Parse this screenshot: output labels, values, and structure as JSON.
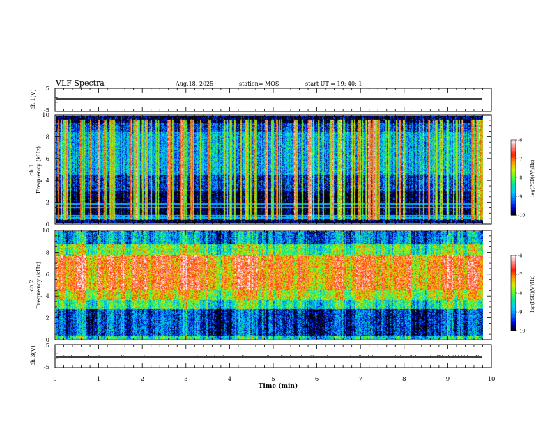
{
  "header": {
    "title": "VLF Spectra",
    "date": "Aug.18, 2025",
    "station": "station= MOS",
    "start_ut": "start  UT  =   19: 40: 1"
  },
  "colors": {
    "colormap": [
      "#000000",
      "#0000e0",
      "#0070ff",
      "#00c8ff",
      "#00e8a0",
      "#50ff30",
      "#d0f000",
      "#ffa000",
      "#ff2000",
      "#ff8888",
      "#ffffff"
    ]
  },
  "chart_data": [
    {
      "type": "line",
      "panel": "ch1-waveform",
      "ylabel": "ch.1(V)",
      "ylim": [
        -5,
        5
      ],
      "yticks": [
        "5",
        "-5"
      ],
      "x": [
        0,
        9.83
      ],
      "values": [
        -1,
        -1
      ],
      "note_visible": false
    },
    {
      "type": "heatmap",
      "panel": "ch1-spectrogram",
      "ylabel": "ch.1\nFrequency (kHz)",
      "ylabel_line1": "ch.1",
      "ylabel_line2": "Frequency (kHz)",
      "xlim": [
        0,
        10
      ],
      "ylim": [
        0,
        10
      ],
      "yticks": [
        "0",
        "2",
        "4",
        "6",
        "8",
        "10"
      ],
      "data_extent_min": 9.83,
      "background_log_psd_by_freq_khz": {
        "0-0.4": -10,
        "0.4-0.8": -9.2,
        "0.8-3": -10,
        "3-4.5": -9.5,
        "4.5-8.5": -8.9,
        "8.5-9.3": -9.4,
        "9.3-10": -10
      },
      "horizontal_lines_khz": [
        0.5,
        0.7,
        1.5,
        1.8
      ],
      "sferic_count_approx": 160,
      "colorbar": {
        "label": "log(PSD)(V²/Hz)",
        "ticks": [
          "-6",
          "-7",
          "-8",
          "-9",
          "-10"
        ],
        "range": [
          -10,
          -6
        ]
      }
    },
    {
      "type": "heatmap",
      "panel": "ch2-spectrogram",
      "ylabel_line1": "ch.2",
      "ylabel_line2": "Frequency (kHz)",
      "xlim": [
        0,
        10
      ],
      "ylim": [
        0,
        10
      ],
      "yticks": [
        "0",
        "2",
        "4",
        "6",
        "8",
        "10"
      ],
      "data_extent_min": 9.83,
      "background_log_psd_by_freq_khz": {
        "0-0.3": -8.5,
        "0.3-2.8": -9.4,
        "2.8-3.6": -8.3,
        "3.6-4.5": -7.6,
        "4.5-7.8": -7.0,
        "7.8-8.8": -8.0,
        "8.8-10": -9.0
      },
      "colorbar": {
        "label": "log(PSD)(V²/Hz)",
        "ticks": [
          "-6",
          "-7",
          "-8",
          "-9",
          "-10"
        ],
        "range": [
          -10,
          -6
        ]
      }
    },
    {
      "type": "line",
      "panel": "ch3-waveform",
      "ylabel": "ch.3(V)",
      "ylim": [
        -5,
        5
      ],
      "yticks": [
        "5",
        "-5"
      ],
      "x": [
        0,
        9.83
      ],
      "values": [
        -1,
        -1
      ]
    }
  ],
  "xaxis": {
    "label": "Time  (min)",
    "ticks": [
      "0",
      "1",
      "2",
      "3",
      "4",
      "5",
      "6",
      "7",
      "8",
      "9",
      "10"
    ],
    "xlim": [
      0,
      10
    ]
  }
}
